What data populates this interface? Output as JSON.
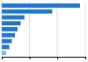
{
  "chart_data": {
    "type": "bar",
    "orientation": "horizontal",
    "categories": [
      null,
      null,
      null,
      null,
      null,
      null,
      null,
      null,
      null
    ],
    "values": [
      248,
      160,
      72,
      60,
      50,
      42,
      32,
      24,
      14
    ],
    "colors": [
      "#2176d4",
      "#2176d4",
      "#2176d4",
      "#2176d4",
      "#2176d4",
      "#2176d4",
      "#2176d4",
      "#2176d4",
      "#7ab8f0"
    ],
    "xlim": [
      0,
      265
    ],
    "xticks": [
      0,
      88,
      176,
      265
    ],
    "grid": true,
    "tick_labels": false
  }
}
